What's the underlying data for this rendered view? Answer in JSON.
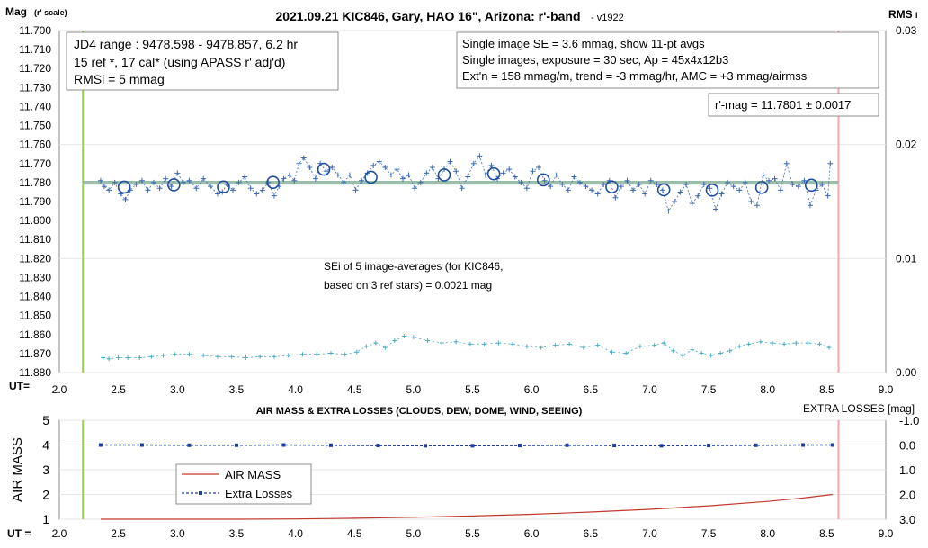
{
  "chart_data": [
    {
      "type": "scatter",
      "title": "2021.09.21 KIC846, Gary, HAO 16\", Arizona: r'-band",
      "version_tag": "- v1922",
      "ylabel": "Mag",
      "ylabel_sub": "(r' scale)",
      "y2label": "RMS",
      "y2label_sub": "i",
      "xlabel": "UT=",
      "xlim": [
        2.0,
        9.0
      ],
      "ylim": [
        11.88,
        11.7
      ],
      "y2lim": [
        0.0,
        0.03
      ],
      "x_ticks": [
        "2.0",
        "2.5",
        "3.0",
        "3.5",
        "4.0",
        "4.5",
        "5.0",
        "5.5",
        "6.0",
        "6.5",
        "7.0",
        "7.5",
        "8.0",
        "8.5",
        "9.0"
      ],
      "y_ticks": [
        "11.700",
        "11.710",
        "11.720",
        "11.730",
        "11.740",
        "11.750",
        "11.760",
        "11.770",
        "11.780",
        "11.790",
        "11.800",
        "11.810",
        "11.820",
        "11.830",
        "11.840",
        "11.850",
        "11.860",
        "11.870",
        "11.880"
      ],
      "y2_ticks": [
        "0.03",
        "0.02",
        "0.01",
        "0.00"
      ],
      "vertical_lines": [
        {
          "x": 2.2,
          "color": "#92d050"
        },
        {
          "x": 8.6,
          "color": "#f4a7b0"
        }
      ],
      "reference_line": {
        "y": 11.7801,
        "color": "#70ad8a"
      },
      "info_box_left": [
        "JD4 range : 9478.598 - 9478.857,  6.2  hr",
        "15 ref *, 17 cal* (using APASS r' adj'd)",
        "RMSi = 5 mmag"
      ],
      "info_box_right": [
        "Single image SE = 3.6 mmag, show  11-pt avgs",
        "Single images, exposure = 30 sec, Ap = 45x4x12b3",
        "Ext'n = 158 mmag/m, trend =  -3 mmag/hr, AMC = +3 mmag/airmss"
      ],
      "result_box": "r'-mag = 11.7801 ± 0.0017",
      "annotation": [
        "SEi of 5 image-averages (for KIC846,",
        "based on 3 ref stars) = 0.0021 mag"
      ],
      "series": [
        {
          "kind": "single-images",
          "color": "#3f6ab3",
          "x": [
            2.35,
            2.38,
            2.42,
            2.47,
            2.52,
            2.56,
            2.6,
            2.65,
            2.7,
            2.75,
            2.8,
            2.85,
            2.9,
            2.95,
            3.0,
            3.05,
            3.1,
            3.16,
            3.22,
            3.28,
            3.34,
            3.38,
            3.42,
            3.47,
            3.52,
            3.57,
            3.62,
            3.67,
            3.72,
            3.77,
            3.82,
            3.86,
            3.9,
            3.95,
            3.99,
            4.03,
            4.07,
            4.12,
            4.17,
            4.21,
            4.26,
            4.31,
            4.36,
            4.41,
            4.46,
            4.51,
            4.56,
            4.61,
            4.66,
            4.71,
            4.76,
            4.81,
            4.86,
            4.91,
            4.96,
            5.01,
            5.06,
            5.11,
            5.16,
            5.21,
            5.26,
            5.31,
            5.36,
            5.41,
            5.46,
            5.51,
            5.56,
            5.61,
            5.66,
            5.71,
            5.76,
            5.81,
            5.86,
            5.91,
            5.96,
            6.01,
            6.06,
            6.11,
            6.16,
            6.21,
            6.26,
            6.31,
            6.36,
            6.41,
            6.46,
            6.51,
            6.56,
            6.61,
            6.66,
            6.71,
            6.76,
            6.81,
            6.86,
            6.91,
            6.96,
            7.01,
            7.06,
            7.11,
            7.16,
            7.21,
            7.26,
            7.31,
            7.36,
            7.41,
            7.46,
            7.51,
            7.56,
            7.61,
            7.66,
            7.71,
            7.76,
            7.81,
            7.86,
            7.91,
            7.96,
            8.01,
            8.06,
            8.11,
            8.16,
            8.21,
            8.26,
            8.31,
            8.36,
            8.41,
            8.46,
            8.51,
            8.53
          ],
          "y": [
            11.779,
            11.782,
            11.784,
            11.78,
            11.786,
            11.789,
            11.784,
            11.781,
            11.779,
            11.784,
            11.78,
            11.783,
            11.778,
            11.782,
            11.775,
            11.78,
            11.779,
            11.783,
            11.778,
            11.782,
            11.786,
            11.785,
            11.781,
            11.784,
            11.78,
            11.777,
            11.783,
            11.786,
            11.784,
            11.78,
            11.787,
            11.782,
            11.778,
            11.776,
            11.779,
            11.77,
            11.767,
            11.772,
            11.778,
            11.77,
            11.774,
            11.772,
            11.776,
            11.78,
            11.776,
            11.784,
            11.779,
            11.775,
            11.771,
            11.769,
            11.772,
            11.776,
            11.773,
            11.778,
            11.776,
            11.783,
            11.78,
            11.775,
            11.772,
            11.778,
            11.773,
            11.769,
            11.774,
            11.783,
            11.777,
            11.77,
            11.766,
            11.776,
            11.771,
            11.778,
            11.775,
            11.773,
            11.777,
            11.78,
            11.783,
            11.774,
            11.772,
            11.779,
            11.782,
            11.776,
            11.781,
            11.784,
            11.777,
            11.78,
            11.782,
            11.784,
            11.786,
            11.781,
            11.779,
            11.788,
            11.782,
            11.779,
            11.784,
            11.781,
            11.786,
            11.779,
            11.781,
            11.784,
            11.795,
            11.79,
            11.785,
            11.781,
            11.791,
            11.787,
            11.781,
            11.783,
            11.794,
            11.786,
            11.78,
            11.782,
            11.784,
            11.78,
            11.79,
            11.792,
            11.776,
            11.779,
            11.778,
            11.784,
            11.77,
            11.781,
            11.782,
            11.779,
            11.792,
            11.784,
            11.781,
            11.787,
            11.77
          ]
        },
        {
          "kind": "11-pt averages",
          "x": [
            2.55,
            2.97,
            3.39,
            3.81,
            4.24,
            4.64,
            5.26,
            5.68,
            6.1,
            6.68,
            7.12,
            7.53,
            7.95,
            8.37
          ],
          "y": [
            11.7824,
            11.7812,
            11.7823,
            11.7799,
            11.773,
            11.7772,
            11.776,
            11.7754,
            11.7786,
            11.7823,
            11.7838,
            11.784,
            11.7826,
            11.7814
          ]
        },
        {
          "kind": "RMSi",
          "color": "#4bacc6",
          "x": [
            2.37,
            2.42,
            2.5,
            2.58,
            2.68,
            2.78,
            2.88,
            2.98,
            3.1,
            3.22,
            3.34,
            3.46,
            3.58,
            3.7,
            3.82,
            3.94,
            4.06,
            4.18,
            4.3,
            4.42,
            4.52,
            4.6,
            4.68,
            4.76,
            4.84,
            4.92,
            5.0,
            5.12,
            5.24,
            5.36,
            5.48,
            5.6,
            5.72,
            5.84,
            5.96,
            6.08,
            6.2,
            6.32,
            6.44,
            6.56,
            6.68,
            6.8,
            6.92,
            7.04,
            7.12,
            7.2,
            7.28,
            7.36,
            7.44,
            7.52,
            7.6,
            7.68,
            7.76,
            7.84,
            7.94,
            8.04,
            8.14,
            8.24,
            8.34,
            8.44,
            8.52
          ],
          "y": [
            0.0013,
            0.0012,
            0.0013,
            0.0013,
            0.0013,
            0.0014,
            0.0015,
            0.0016,
            0.0016,
            0.0015,
            0.0014,
            0.0014,
            0.0013,
            0.0014,
            0.0014,
            0.0015,
            0.0016,
            0.0016,
            0.0017,
            0.0016,
            0.0018,
            0.0023,
            0.0026,
            0.0022,
            0.0028,
            0.0032,
            0.0031,
            0.0028,
            0.0026,
            0.0027,
            0.0025,
            0.0025,
            0.0026,
            0.0025,
            0.0023,
            0.0022,
            0.0024,
            0.0025,
            0.0022,
            0.0024,
            0.0018,
            0.0017,
            0.0023,
            0.0024,
            0.0026,
            0.0019,
            0.0015,
            0.002,
            0.0017,
            0.0015,
            0.0017,
            0.0019,
            0.0023,
            0.0025,
            0.0027,
            0.0026,
            0.0025,
            0.0026,
            0.0026,
            0.0025,
            0.0022
          ]
        }
      ]
    },
    {
      "type": "line",
      "title": "AIR MASS & EXTRA LOSSES (CLOUDS, DEW, DOME, WIND, SEEING)",
      "ylabel": "AIR MASS",
      "y2label": "EXTRA LOSSES [mag]",
      "xlabel": "UT =",
      "xlim": [
        2.0,
        9.0
      ],
      "ylim": [
        1,
        5
      ],
      "y2lim": [
        3.0,
        -1.0
      ],
      "x_ticks": [
        "2.0",
        "2.5",
        "3.0",
        "3.5",
        "4.0",
        "4.5",
        "5.0",
        "5.5",
        "6.0",
        "6.5",
        "7.0",
        "7.5",
        "8.0",
        "8.5",
        "9.0"
      ],
      "y_ticks": [
        "5",
        "4",
        "3",
        "2",
        "1"
      ],
      "y2_ticks": [
        "-1.0",
        "0.0",
        "1.0",
        "2.0",
        "3.0"
      ],
      "vertical_lines": [
        {
          "x": 2.2,
          "color": "#92d050"
        },
        {
          "x": 8.6,
          "color": "#f4a7b0"
        }
      ],
      "series": [
        {
          "name": "AIR MASS",
          "color": "#c0392b",
          "x": [
            2.35,
            3.0,
            3.5,
            4.0,
            4.5,
            5.0,
            5.5,
            6.0,
            6.5,
            7.0,
            7.5,
            8.0,
            8.3,
            8.55
          ],
          "y": [
            1.0,
            1.0,
            1.0,
            1.01,
            1.04,
            1.08,
            1.13,
            1.2,
            1.29,
            1.4,
            1.54,
            1.72,
            1.86,
            2.0
          ]
        },
        {
          "name": "Extra Losses",
          "color": "#1f3b9e",
          "x": [
            2.35,
            2.7,
            3.1,
            3.5,
            3.9,
            4.3,
            4.7,
            5.1,
            5.5,
            5.9,
            6.3,
            6.7,
            7.1,
            7.5,
            7.9,
            8.3,
            8.55
          ],
          "y": [
            0.0,
            0.0,
            0.01,
            0.01,
            0.0,
            0.01,
            0.02,
            0.03,
            0.03,
            0.02,
            0.01,
            0.02,
            0.03,
            0.02,
            0.01,
            0.0,
            0.0
          ]
        }
      ]
    }
  ]
}
